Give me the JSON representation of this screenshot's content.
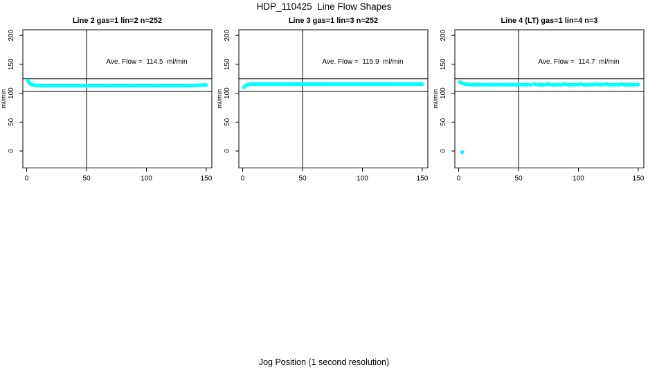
{
  "chart_data": {
    "type": "scatter",
    "title": "HDP_110425  Line Flow Shapes",
    "xlabel": "Jog Position (1 second resolution)",
    "ylabel": "ml/min",
    "xlim": [
      0,
      155
    ],
    "ylim": [
      -8,
      210
    ],
    "x_ticks": [
      0,
      50,
      100,
      150
    ],
    "y_ticks": [
      0,
      50,
      100,
      150,
      200
    ],
    "point_color": "#00ffff",
    "axis_color": "#000000",
    "reference_lines": {
      "vertical_x": 50,
      "horizontal_y": [
        125,
        103
      ]
    },
    "panels": [
      {
        "label": "Line 2 gas=1 lin=2 n=252",
        "ave_flow": 114.5,
        "n": 252,
        "ave_flow_text": "Ave. Flow =  114.5  ml/min",
        "segments": [
          [
            [
              1,
              122
            ],
            [
              1.5,
              120
            ],
            [
              2,
              118.5
            ],
            [
              2.5,
              117.2
            ],
            [
              3,
              116.3
            ],
            [
              3.5,
              115.7
            ],
            [
              4,
              115.2
            ],
            [
              5,
              114.5
            ],
            [
              6,
              114
            ],
            [
              7,
              113.7
            ],
            [
              8,
              113.5
            ],
            [
              9,
              113.4
            ],
            [
              10,
              113.3
            ],
            [
              12,
              113.2
            ],
            [
              14,
              113.3
            ],
            [
              16,
              113.1
            ],
            [
              18,
              113.2
            ],
            [
              20,
              113.3
            ],
            [
              22,
              113.1
            ],
            [
              24,
              113.2
            ],
            [
              26,
              113.3
            ],
            [
              28,
              113.2
            ],
            [
              30,
              113.1
            ],
            [
              32,
              113.2
            ],
            [
              34,
              113.3
            ],
            [
              36,
              113.2
            ],
            [
              38,
              113.1
            ],
            [
              40,
              113.2
            ],
            [
              42,
              113.3
            ],
            [
              44,
              113.2
            ],
            [
              46,
              113.1
            ],
            [
              48,
              113.2
            ],
            [
              50,
              113.3
            ],
            [
              52,
              113.2
            ],
            [
              54,
              113.1
            ],
            [
              56,
              113.2
            ],
            [
              58,
              113.3
            ],
            [
              60,
              113.2
            ],
            [
              62,
              113.1
            ],
            [
              64,
              113.2
            ],
            [
              66,
              113.3
            ],
            [
              68,
              113.2
            ],
            [
              70,
              113.1
            ],
            [
              72,
              113.2
            ],
            [
              74,
              113.3
            ],
            [
              76,
              113.2
            ],
            [
              78,
              113.1
            ],
            [
              80,
              113.2
            ],
            [
              82,
              113.3
            ],
            [
              84,
              113.2
            ],
            [
              86,
              113.1
            ],
            [
              88,
              113.2
            ],
            [
              90,
              113.3
            ],
            [
              92,
              113.2
            ],
            [
              94,
              113.1
            ],
            [
              96,
              113.2
            ],
            [
              98,
              113.3
            ],
            [
              100,
              113.2
            ],
            [
              102,
              113.1
            ],
            [
              104,
              113.2
            ],
            [
              106,
              113.3
            ],
            [
              108,
              113.2
            ],
            [
              110,
              113.1
            ],
            [
              112,
              113.2
            ],
            [
              114,
              113.3
            ],
            [
              116,
              113.2
            ],
            [
              118,
              113.1
            ],
            [
              120,
              113.2
            ],
            [
              122,
              113.3
            ],
            [
              124,
              113.2
            ],
            [
              126,
              113.1
            ],
            [
              128,
              113.2
            ],
            [
              130,
              113.3
            ],
            [
              132,
              113.2
            ],
            [
              134,
              113.1
            ],
            [
              136,
              113.2
            ],
            [
              138,
              113.4
            ],
            [
              140,
              113.5
            ],
            [
              142,
              113.7
            ],
            [
              144,
              113.8
            ],
            [
              146,
              114
            ],
            [
              148,
              114.1
            ],
            [
              150,
              114.2
            ]
          ]
        ],
        "outliers": []
      },
      {
        "label": "Line 3 gas=1 lin=3 n=252",
        "ave_flow": 115.9,
        "n": 252,
        "ave_flow_text": "Ave. Flow =  115.9  ml/min",
        "segments": [
          [
            [
              1,
              110
            ],
            [
              1.5,
              111.3
            ],
            [
              2,
              112.4
            ],
            [
              2.5,
              113.3
            ],
            [
              3,
              114
            ],
            [
              4,
              114.8
            ],
            [
              5,
              115.2
            ],
            [
              6,
              115.5
            ],
            [
              7,
              115.7
            ],
            [
              8,
              115.8
            ],
            [
              10,
              115.9
            ],
            [
              12,
              115.8
            ],
            [
              14,
              115.9
            ],
            [
              16,
              116
            ],
            [
              18,
              115.8
            ],
            [
              20,
              115.9
            ],
            [
              22,
              116
            ],
            [
              24,
              115.8
            ],
            [
              26,
              115.9
            ],
            [
              28,
              116
            ],
            [
              30,
              115.8
            ],
            [
              32,
              115.9
            ],
            [
              34,
              116
            ],
            [
              36,
              115.8
            ],
            [
              38,
              115.9
            ],
            [
              40,
              116
            ],
            [
              42,
              115.8
            ],
            [
              44,
              115.9
            ],
            [
              46,
              116
            ],
            [
              48,
              115.8
            ],
            [
              50,
              115.9
            ],
            [
              52,
              116
            ],
            [
              54,
              115.8
            ],
            [
              56,
              115.9
            ],
            [
              58,
              116
            ],
            [
              60,
              115.8
            ],
            [
              62,
              115.9
            ],
            [
              64,
              116
            ],
            [
              66,
              115.8
            ],
            [
              68,
              115.9
            ],
            [
              70,
              116
            ],
            [
              72,
              115.8
            ],
            [
              74,
              115.9
            ],
            [
              76,
              116
            ],
            [
              78,
              115.8
            ],
            [
              80,
              115.9
            ],
            [
              82,
              116
            ],
            [
              84,
              115.8
            ],
            [
              86,
              115.9
            ],
            [
              88,
              116
            ],
            [
              90,
              115.8
            ],
            [
              92,
              115.9
            ],
            [
              94,
              116
            ],
            [
              96,
              115.8
            ],
            [
              98,
              115.9
            ],
            [
              100,
              116
            ],
            [
              102,
              115.8
            ],
            [
              104,
              115.9
            ],
            [
              106,
              116
            ],
            [
              108,
              115.8
            ],
            [
              110,
              115.9
            ],
            [
              112,
              116
            ],
            [
              114,
              115.8
            ],
            [
              116,
              115.9
            ],
            [
              118,
              116
            ],
            [
              120,
              115.8
            ],
            [
              122,
              115.9
            ],
            [
              124,
              116
            ],
            [
              126,
              115.8
            ],
            [
              128,
              115.9
            ],
            [
              130,
              116
            ],
            [
              132,
              115.8
            ],
            [
              134,
              115.9
            ],
            [
              136,
              116
            ],
            [
              138,
              115.8
            ],
            [
              140,
              115.9
            ],
            [
              142,
              116
            ],
            [
              144,
              115.8
            ],
            [
              146,
              115.9
            ],
            [
              148,
              115.8
            ],
            [
              150,
              115.9
            ]
          ]
        ],
        "outliers": []
      },
      {
        "label": "Line 4 (LT) gas=1 lin=4 n=3",
        "ave_flow": 114.7,
        "n": 3,
        "ave_flow_text": "Ave. Flow =  114.7  ml/min",
        "segments": [
          [
            [
              1,
              119.5
            ],
            [
              2,
              118.2
            ],
            [
              3,
              117.2
            ],
            [
              4,
              116.5
            ],
            [
              5,
              116
            ],
            [
              6,
              115.6
            ],
            [
              8,
              115.2
            ],
            [
              10,
              115
            ],
            [
              12,
              114.8
            ],
            [
              14,
              115.1
            ],
            [
              16,
              114.7
            ],
            [
              18,
              115
            ],
            [
              20,
              114.6
            ],
            [
              22,
              114.9
            ],
            [
              24,
              115.2
            ],
            [
              26,
              114.7
            ],
            [
              28,
              115
            ],
            [
              30,
              114.6
            ],
            [
              32,
              114.9
            ],
            [
              34,
              115.1
            ],
            [
              36,
              114.7
            ],
            [
              38,
              115
            ],
            [
              40,
              114.6
            ],
            [
              42,
              114.8
            ],
            [
              44,
              115.1
            ],
            [
              46,
              114.7
            ],
            [
              48,
              114.9
            ],
            [
              50,
              114.6
            ],
            [
              52,
              114.8
            ]
          ],
          [
            [
              54,
              115
            ],
            [
              56,
              114.5
            ],
            [
              58,
              115.1
            ],
            [
              60,
              114.7
            ]
          ],
          [
            [
              63,
              116
            ],
            [
              64,
              115.5
            ]
          ],
          [
            [
              66,
              114.3
            ],
            [
              68,
              114.8
            ],
            [
              70,
              114.4
            ],
            [
              72,
              115
            ],
            [
              73,
              114.6
            ]
          ],
          [
            [
              75,
              116.2
            ],
            [
              76,
              115.8
            ]
          ],
          [
            [
              78,
              114.4
            ],
            [
              80,
              114.9
            ],
            [
              82,
              114.5
            ],
            [
              84,
              115
            ],
            [
              86,
              114.6
            ]
          ],
          [
            [
              88,
              115.9
            ],
            [
              90,
              115.4
            ]
          ],
          [
            [
              92,
              114.4
            ],
            [
              94,
              114.9
            ],
            [
              96,
              114.5
            ],
            [
              98,
              115
            ],
            [
              100,
              114.6
            ]
          ],
          [
            [
              102,
              116
            ],
            [
              103,
              115.6
            ]
          ],
          [
            [
              105,
              114.4
            ],
            [
              107,
              114.9
            ],
            [
              109,
              114.5
            ],
            [
              111,
              115
            ],
            [
              112,
              114.6
            ]
          ],
          [
            [
              114,
              115.8
            ],
            [
              116,
              115.3
            ],
            [
              118,
              114.8
            ],
            [
              120,
              115.2
            ],
            [
              121,
              114.7
            ]
          ],
          [
            [
              123,
              116
            ],
            [
              124,
              115.5
            ]
          ],
          [
            [
              126,
              114.4
            ],
            [
              128,
              114.9
            ],
            [
              130,
              114.5
            ],
            [
              132,
              115
            ],
            [
              134,
              114.6
            ]
          ],
          [
            [
              136,
              115.9
            ],
            [
              137,
              115.4
            ]
          ],
          [
            [
              139,
              114.4
            ],
            [
              141,
              114.9
            ],
            [
              143,
              114.5
            ],
            [
              145,
              115
            ],
            [
              147,
              114.6
            ]
          ],
          [
            [
              149,
              115.2
            ],
            [
              150,
              114.8
            ]
          ]
        ],
        "outliers": [
          [
            3,
            -2
          ]
        ]
      }
    ]
  }
}
